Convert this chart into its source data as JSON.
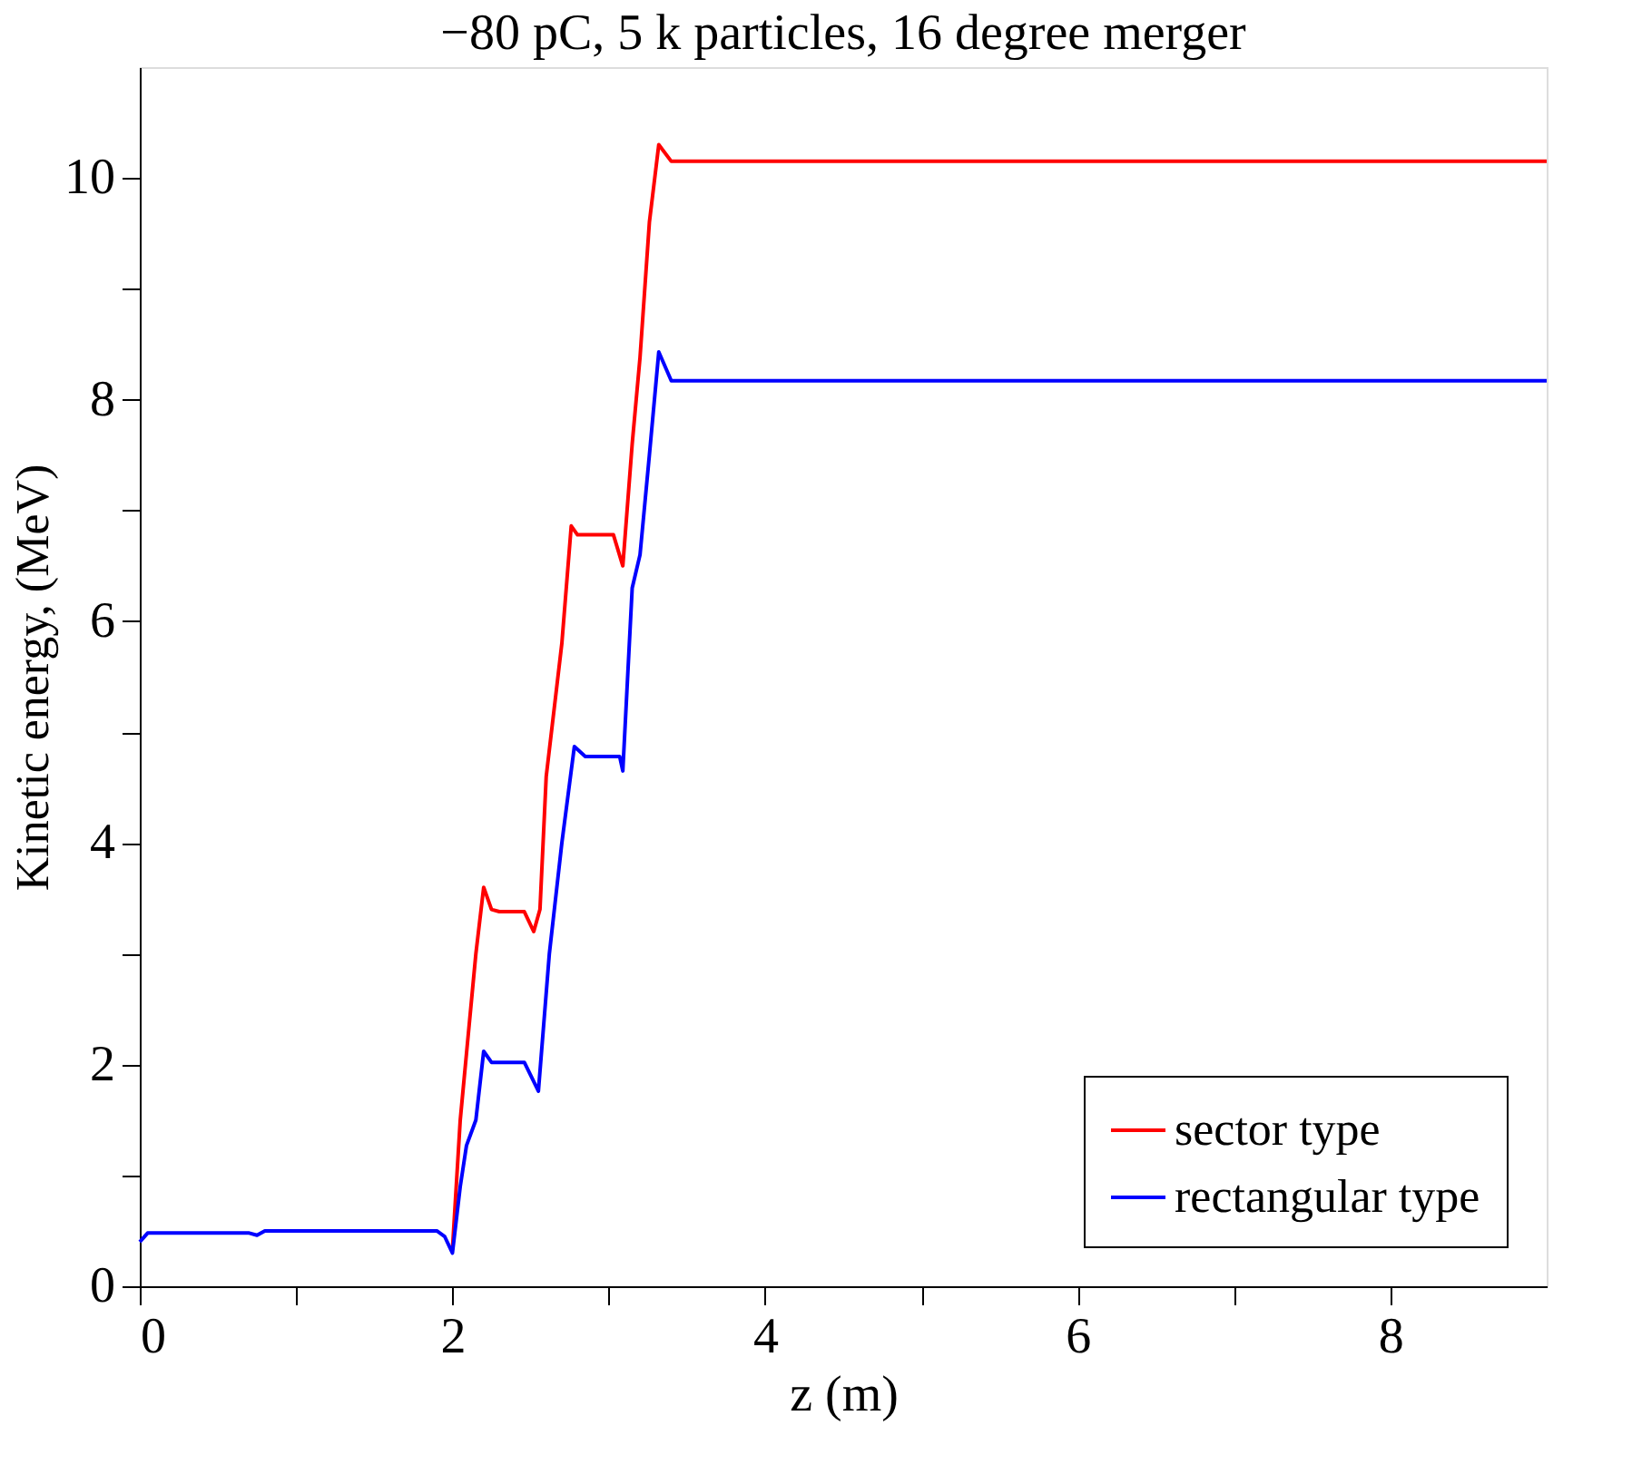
{
  "chart_data": {
    "type": "line",
    "title": "−80 pC, 5 k particles, 16 degree merger",
    "xlabel": "z (m)",
    "ylabel": "Kinetic energy, (MeV)",
    "xlim": [
      0,
      9
    ],
    "ylim": [
      0,
      11
    ],
    "xticks": [
      0,
      {
        "value": 1,
        "label": null
      },
      2,
      {
        "value": 3,
        "label": null
      },
      4,
      {
        "value": 5,
        "label": null
      },
      6,
      {
        "value": 7,
        "label": null
      },
      8
    ],
    "yticks": [
      0,
      {
        "value": 1,
        "label": null
      },
      2,
      {
        "value": 3,
        "label": null
      },
      4,
      {
        "value": 5,
        "label": null
      },
      6,
      {
        "value": 7,
        "label": null
      },
      8,
      {
        "value": 9,
        "label": null
      },
      10
    ],
    "grid": false,
    "legend": "bottom right",
    "line_style": "solid",
    "marker": "none",
    "series": [
      {
        "name": "sector type",
        "color": "#ff0000",
        "x": [
          2.0,
          2.05,
          2.09,
          2.15,
          2.2,
          2.25,
          2.3,
          2.46,
          2.52,
          2.56,
          2.6,
          2.7,
          2.76,
          2.8,
          3.03,
          3.09,
          3.15,
          3.2,
          3.26,
          3.32,
          3.4,
          9
        ],
        "values": [
          0.33,
          1.5,
          2.1,
          3.0,
          3.6,
          3.4,
          3.38,
          3.38,
          3.2,
          3.4,
          4.6,
          5.8,
          6.86,
          6.78,
          6.78,
          6.5,
          7.6,
          8.38,
          9.6,
          10.3,
          10.15,
          10.15
        ]
      },
      {
        "name": "rectangular type",
        "color": "#0000ff",
        "x": [
          0,
          0.05,
          0.7,
          0.75,
          0.8,
          1.9,
          1.95,
          2.0,
          2.05,
          2.09,
          2.15,
          2.2,
          2.25,
          2.3,
          2.46,
          2.55,
          2.62,
          2.7,
          2.78,
          2.85,
          3.07,
          3.09,
          3.15,
          3.2,
          3.26,
          3.32,
          3.4,
          9
        ],
        "values": [
          0.4,
          0.48,
          0.48,
          0.46,
          0.5,
          0.5,
          0.45,
          0.3,
          0.9,
          1.27,
          1.5,
          2.12,
          2.02,
          2.02,
          2.02,
          1.76,
          3.0,
          4.0,
          4.87,
          4.78,
          4.78,
          4.65,
          6.3,
          6.6,
          7.5,
          8.43,
          8.17,
          8.17
        ]
      }
    ]
  }
}
